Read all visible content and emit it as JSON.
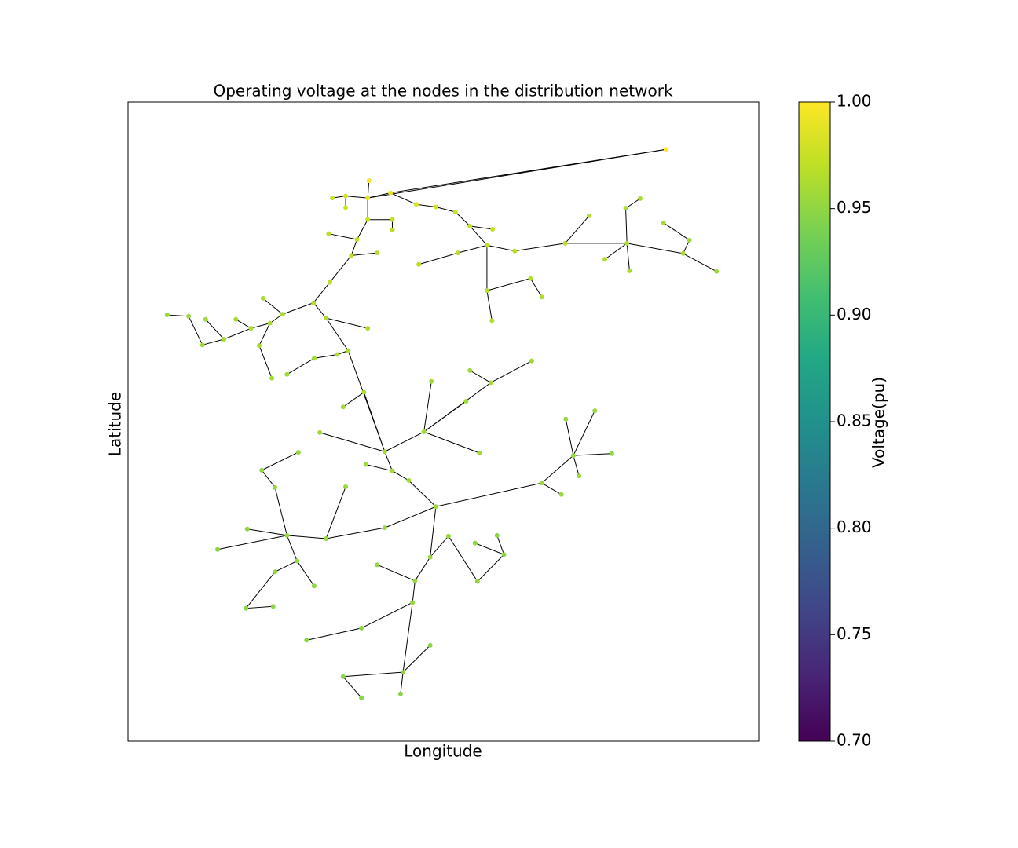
{
  "chart_data": {
    "type": "network",
    "title": "Operating voltage at the nodes in the distribution network",
    "x_label": "Longitude",
    "y_label": "Latitude",
    "xlim": [
      0,
      100
    ],
    "ylim": [
      0,
      100
    ],
    "nodes": {
      "x": [
        85.3,
        41.6,
        38.2,
        38.0,
        34.5,
        32.4,
        34.5,
        38.0,
        41.9,
        41.9,
        36.3,
        31.8,
        35.4,
        39.5,
        32.0,
        29.4,
        24.5,
        21.4,
        22.5,
        19.5,
        15.2,
        11.8,
        9.6,
        6.2,
        12.3,
        17.1,
        20.8,
        22.8,
        31.4,
        34.9,
        38.0,
        33.2,
        29.5,
        25.2,
        40.7,
        30.4,
        37.4,
        34.1,
        57.5,
        64.0,
        48.1,
        54.2,
        46.9,
        53.6,
        55.7,
        41.9,
        48.8,
        44.5,
        37.7,
        65.6,
        74.0,
        70.6,
        76.7,
        71.5,
        68.7,
        69.4,
        40.7,
        31.4,
        25.2,
        14.2,
        18.9,
        23.3,
        21.2,
        27.0,
        34.5,
        26.8,
        23.3,
        18.7,
        23.0,
        29.5,
        47.9,
        45.5,
        45.1,
        39.5,
        55.4,
        59.6,
        58.5,
        55.0,
        50.8,
        28.3,
        37.0,
        43.6,
        47.9,
        34.1,
        37.0,
        43.2,
        51.9,
        54.2,
        57.8,
        56.9,
        61.3,
        69.3,
        79.1,
        78.9,
        81.2,
        79.5,
        88.0,
        93.3,
        89.0,
        84.9,
        73.1,
        56.9,
        57.7,
        63.8,
        65.6,
        46.1,
        52.3,
        75.6,
        45.7,
        48.8
      ],
      "y": [
        92.6,
        85.8,
        87.7,
        85.0,
        85.3,
        85.0,
        83.5,
        81.6,
        81.6,
        80.0,
        78.5,
        79.4,
        76.0,
        76.4,
        71.8,
        68.6,
        66.8,
        69.3,
        65.4,
        64.6,
        62.9,
        62.0,
        66.5,
        66.7,
        66.0,
        66.0,
        61.9,
        56.8,
        66.2,
        61.1,
        64.6,
        60.5,
        59.9,
        57.4,
        45.3,
        48.3,
        54.6,
        52.3,
        56.1,
        59.5,
        56.3,
        58.0,
        48.4,
        53.2,
        45.1,
        42.3,
        36.7,
        40.8,
        43.3,
        40.4,
        51.7,
        44.7,
        45.0,
        41.5,
        38.6,
        50.4,
        33.4,
        31.7,
        32.2,
        30.0,
        33.2,
        39.7,
        42.4,
        45.2,
        39.8,
        28.2,
        26.5,
        20.8,
        21.1,
        24.3,
        28.8,
        25.1,
        21.7,
        27.6,
        25.0,
        29.2,
        32.2,
        31.0,
        32.1,
        15.8,
        17.7,
        10.8,
        15.0,
        10.1,
        6.8,
        7.4,
        82.8,
        80.6,
        80.1,
        77.6,
        76.7,
        77.9,
        77.9,
        83.4,
        84.9,
        73.6,
        76.3,
        73.5,
        78.4,
        81.1,
        82.2,
        70.5,
        65.8,
        72.4,
        69.5,
        74.6,
        76.4,
        75.4,
        84.0,
        83.6
      ],
      "values": [
        1.0,
        0.99,
        0.995,
        0.985,
        0.98,
        0.975,
        0.978,
        0.975,
        0.972,
        0.97,
        0.972,
        0.968,
        0.97,
        0.968,
        0.968,
        0.965,
        0.963,
        0.962,
        0.962,
        0.96,
        0.958,
        0.956,
        0.955,
        0.954,
        0.957,
        0.959,
        0.96,
        0.958,
        0.965,
        0.962,
        0.963,
        0.961,
        0.96,
        0.958,
        0.96,
        0.958,
        0.96,
        0.958,
        0.958,
        0.956,
        0.957,
        0.957,
        0.959,
        0.958,
        0.957,
        0.958,
        0.957,
        0.958,
        0.958,
        0.955,
        0.952,
        0.953,
        0.951,
        0.953,
        0.954,
        0.952,
        0.957,
        0.955,
        0.953,
        0.949,
        0.951,
        0.952,
        0.951,
        0.951,
        0.955,
        0.952,
        0.951,
        0.948,
        0.948,
        0.95,
        0.955,
        0.953,
        0.952,
        0.951,
        0.951,
        0.949,
        0.948,
        0.95,
        0.953,
        0.948,
        0.949,
        0.948,
        0.947,
        0.947,
        0.946,
        0.947,
        0.975,
        0.973,
        0.972,
        0.97,
        0.968,
        0.966,
        0.963,
        0.962,
        0.961,
        0.961,
        0.96,
        0.958,
        0.96,
        0.961,
        0.965,
        0.966,
        0.964,
        0.965,
        0.964,
        0.967,
        0.968,
        0.964,
        0.982,
        0.978
      ]
    },
    "edges": [
      [
        0,
        1
      ],
      [
        0,
        3
      ],
      [
        1,
        3
      ],
      [
        2,
        3
      ],
      [
        3,
        4
      ],
      [
        4,
        5
      ],
      [
        4,
        6
      ],
      [
        3,
        7
      ],
      [
        7,
        8
      ],
      [
        8,
        9
      ],
      [
        7,
        10
      ],
      [
        10,
        11
      ],
      [
        10,
        12
      ],
      [
        12,
        13
      ],
      [
        12,
        14
      ],
      [
        14,
        15
      ],
      [
        15,
        16
      ],
      [
        16,
        17
      ],
      [
        16,
        18
      ],
      [
        18,
        19
      ],
      [
        19,
        20
      ],
      [
        20,
        21
      ],
      [
        21,
        22
      ],
      [
        22,
        23
      ],
      [
        20,
        24
      ],
      [
        19,
        25
      ],
      [
        18,
        26
      ],
      [
        26,
        27
      ],
      [
        15,
        28
      ],
      [
        28,
        29
      ],
      [
        28,
        30
      ],
      [
        29,
        31
      ],
      [
        31,
        32
      ],
      [
        32,
        33
      ],
      [
        29,
        34
      ],
      [
        34,
        35
      ],
      [
        34,
        36
      ],
      [
        36,
        37
      ],
      [
        34,
        42
      ],
      [
        42,
        40
      ],
      [
        42,
        38
      ],
      [
        38,
        39
      ],
      [
        38,
        41
      ],
      [
        42,
        43
      ],
      [
        42,
        44
      ],
      [
        34,
        45
      ],
      [
        45,
        47
      ],
      [
        47,
        46
      ],
      [
        45,
        48
      ],
      [
        46,
        49
      ],
      [
        49,
        51
      ],
      [
        51,
        50
      ],
      [
        51,
        52
      ],
      [
        51,
        53
      ],
      [
        49,
        54
      ],
      [
        51,
        55
      ],
      [
        46,
        56
      ],
      [
        56,
        57
      ],
      [
        57,
        58
      ],
      [
        58,
        59
      ],
      [
        58,
        60
      ],
      [
        58,
        61
      ],
      [
        61,
        62
      ],
      [
        62,
        63
      ],
      [
        57,
        64
      ],
      [
        58,
        65
      ],
      [
        65,
        66
      ],
      [
        66,
        67
      ],
      [
        67,
        68
      ],
      [
        65,
        69
      ],
      [
        46,
        70
      ],
      [
        70,
        71
      ],
      [
        71,
        72
      ],
      [
        71,
        73
      ],
      [
        70,
        78
      ],
      [
        78,
        74
      ],
      [
        74,
        75
      ],
      [
        75,
        76
      ],
      [
        75,
        77
      ],
      [
        72,
        80
      ],
      [
        80,
        79
      ],
      [
        72,
        81
      ],
      [
        81,
        82
      ],
      [
        81,
        83
      ],
      [
        83,
        84
      ],
      [
        81,
        85
      ],
      [
        1,
        108
      ],
      [
        108,
        109
      ],
      [
        109,
        86
      ],
      [
        86,
        87
      ],
      [
        87,
        88
      ],
      [
        87,
        89
      ],
      [
        89,
        90
      ],
      [
        90,
        91
      ],
      [
        91,
        92
      ],
      [
        92,
        93
      ],
      [
        93,
        94
      ],
      [
        92,
        95
      ],
      [
        92,
        96
      ],
      [
        96,
        97
      ],
      [
        96,
        98
      ],
      [
        98,
        99
      ],
      [
        91,
        100
      ],
      [
        89,
        101
      ],
      [
        101,
        102
      ],
      [
        101,
        103
      ],
      [
        103,
        104
      ],
      [
        106,
        105
      ],
      [
        106,
        89
      ],
      [
        92,
        107
      ]
    ],
    "colorbar": {
      "label": "Voltage(pu)",
      "colormap": "viridis",
      "lim": [
        0.7,
        1.0
      ],
      "ticks": [
        {
          "value": 0.7,
          "label": "0.70"
        },
        0.75,
        {
          "value": 0.8,
          "label": "0.80"
        },
        0.85,
        {
          "value": 0.9,
          "label": "0.90"
        },
        0.95,
        {
          "value": 1.0,
          "label": "1.00"
        }
      ]
    }
  }
}
